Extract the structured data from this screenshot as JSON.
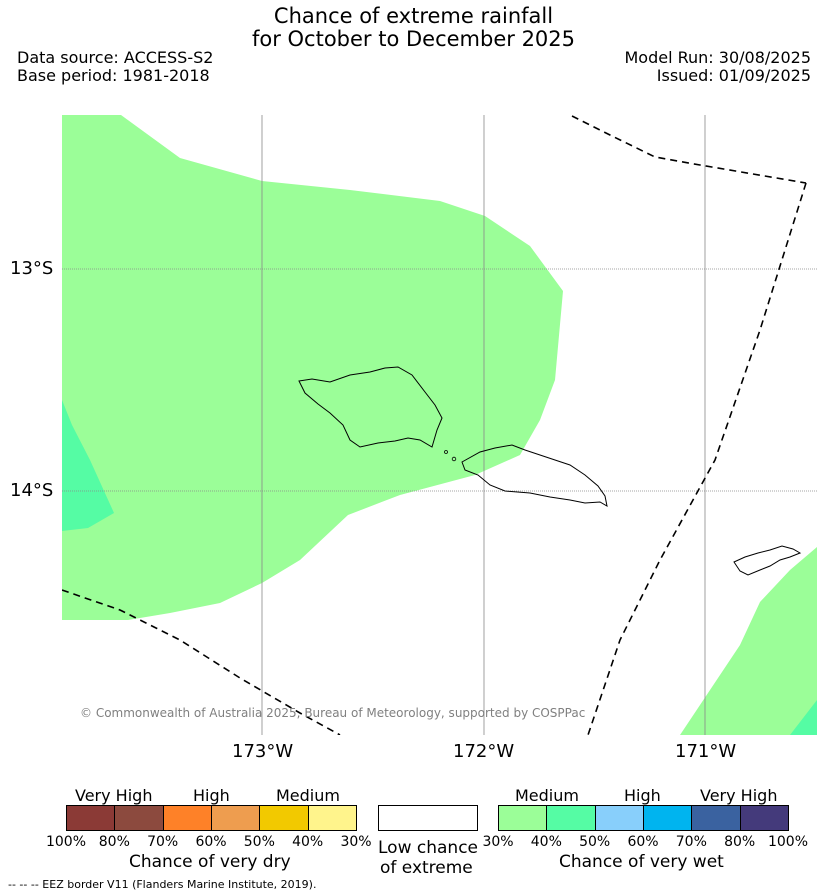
{
  "title": {
    "line1": "Chance of extreme rainfall",
    "line2": "for October to December 2025"
  },
  "meta": {
    "data_source": "Data source: ACCESS-S2",
    "base_period": "Base period: 1981-2018",
    "model_run": "Model Run: 30/08/2025",
    "issued": "Issued: 01/09/2025"
  },
  "map": {
    "lat_labels": [
      "13°S",
      "14°S"
    ],
    "lon_labels": [
      "173°W",
      "172°W",
      "171°W"
    ],
    "copyright": "© Commonwealth of Australia 2025, Bureau of Meteorology, supported by COSPPac"
  },
  "colors": {
    "medium_wet": "#9bfe98",
    "wet_40_50": "#55fca4",
    "eez_line": "#000000",
    "grid_line": "#888888"
  },
  "legend": {
    "dry": {
      "headers": [
        "Very High",
        "High",
        "Medium"
      ],
      "ticks": [
        "100%",
        "80%",
        "70%",
        "60%",
        "50%",
        "40%",
        "30%"
      ],
      "colors": [
        "#8b3a36",
        "#8c4a3e",
        "#fe8128",
        "#ee9d4f",
        "#f2c900",
        "#fff48c"
      ],
      "title": "Chance of very dry"
    },
    "low": {
      "line1": "Low chance",
      "line2": "of extreme"
    },
    "wet": {
      "headers": [
        "Medium",
        "High",
        "Very High"
      ],
      "ticks": [
        "30%",
        "40%",
        "50%",
        "60%",
        "70%",
        "80%",
        "100%"
      ],
      "colors": [
        "#9bfe98",
        "#55fca4",
        "#88cffb",
        "#00b4ef",
        "#3a62a0",
        "#443a7b"
      ],
      "title": "Chance of very wet"
    }
  },
  "footer": "--  --  -- EEZ border V11 (Flanders Marine Institute, 2019)."
}
